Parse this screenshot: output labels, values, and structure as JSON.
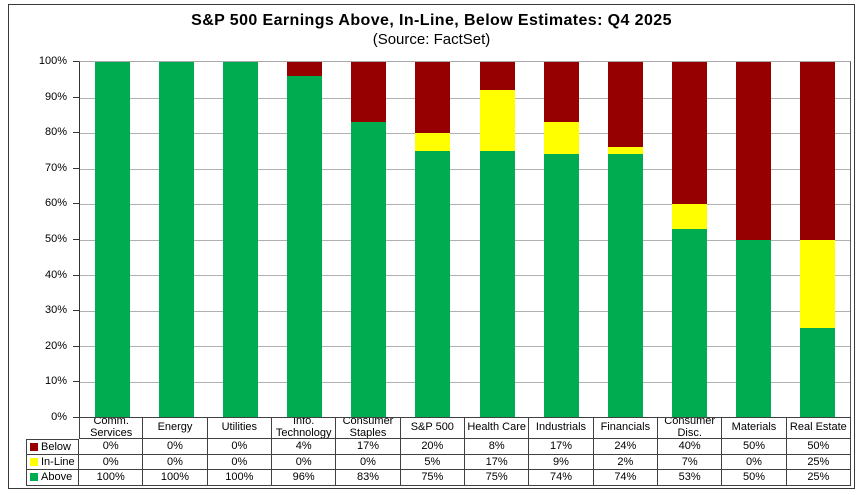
{
  "title": "S&P 500 Earnings Above, In-Line, Below Estimates: Q4 2025",
  "subtitle": "(Source: FactSet)",
  "colors": {
    "above": "#00AC50",
    "inline": "#FFFF00",
    "below": "#960000",
    "gridline": "#B0B0B0",
    "axis": "#333333",
    "table_border": "#404040"
  },
  "y_axis": {
    "ticks": [
      "100%",
      "90%",
      "80%",
      "70%",
      "60%",
      "50%",
      "40%",
      "30%",
      "20%",
      "10%",
      "0%"
    ],
    "min": 0,
    "max": 100,
    "step": 10
  },
  "legend": [
    {
      "label": "Below",
      "color": "#960000"
    },
    {
      "label": "In-Line",
      "color": "#FFFF00"
    },
    {
      "label": "Above",
      "color": "#00AC50"
    }
  ],
  "chart_data": {
    "type": "bar",
    "stacked": true,
    "title": "S&P 500 Earnings Above, In-Line, Below Estimates: Q4 2025",
    "subtitle": "(Source: FactSet)",
    "xlabel": "",
    "ylabel": "",
    "ylim": [
      0,
      100
    ],
    "grid": true,
    "legend_position": "data-table-left",
    "data_table": true,
    "categories": [
      "Comm. Services",
      "Energy",
      "Utilities",
      "Info. Technology",
      "Consumer Staples",
      "S&P 500",
      "Health Care",
      "Industrials",
      "Financials",
      "Consumer Disc.",
      "Materials",
      "Real Estate"
    ],
    "series": [
      {
        "name": "Below",
        "color": "#960000",
        "values": [
          0,
          0,
          0,
          4,
          17,
          20,
          8,
          17,
          24,
          40,
          50,
          50
        ]
      },
      {
        "name": "In-Line",
        "color": "#FFFF00",
        "values": [
          0,
          0,
          0,
          0,
          0,
          5,
          17,
          9,
          2,
          7,
          0,
          25
        ]
      },
      {
        "name": "Above",
        "color": "#00AC50",
        "values": [
          100,
          100,
          100,
          96,
          83,
          75,
          75,
          74,
          74,
          53,
          50,
          25
        ]
      }
    ]
  }
}
